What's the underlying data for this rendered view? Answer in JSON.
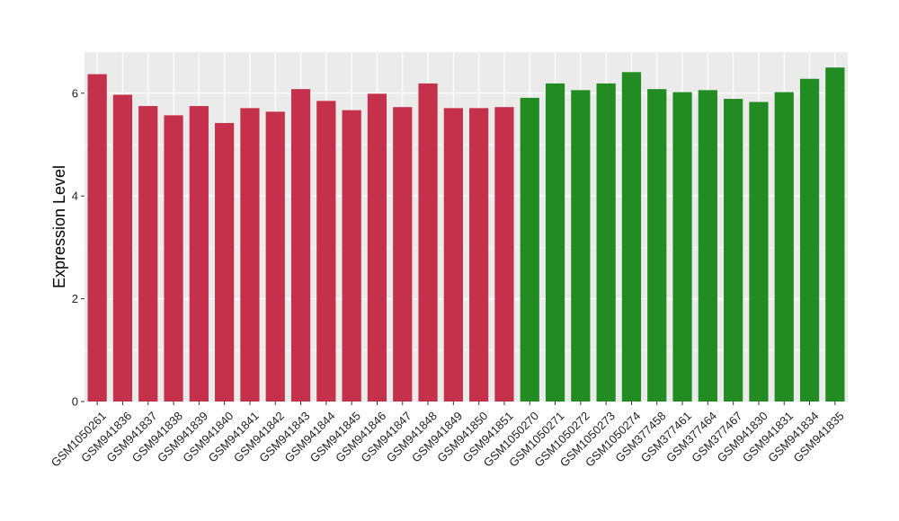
{
  "chart_data": {
    "type": "bar",
    "title": "",
    "xlabel": "",
    "ylabel": "Expression Level",
    "ylim": [
      0,
      6.8
    ],
    "yticks": [
      0,
      2,
      4,
      6
    ],
    "grid": true,
    "legend": "none",
    "categories": [
      "GSM1050261",
      "GSM941836",
      "GSM941837",
      "GSM941838",
      "GSM941839",
      "GSM941840",
      "GSM941841",
      "GSM941842",
      "GSM941843",
      "GSM941844",
      "GSM941845",
      "GSM941846",
      "GSM941847",
      "GSM941848",
      "GSM941849",
      "GSM941850",
      "GSM941851",
      "GSM1050270",
      "GSM1050271",
      "GSM1050272",
      "GSM1050273",
      "GSM1050274",
      "GSM377458",
      "GSM377461",
      "GSM377464",
      "GSM377467",
      "GSM941830",
      "GSM941831",
      "GSM941834",
      "GSM941835"
    ],
    "values": [
      6.37,
      5.97,
      5.75,
      5.57,
      5.75,
      5.42,
      5.71,
      5.64,
      6.08,
      5.85,
      5.67,
      5.99,
      5.73,
      6.19,
      5.71,
      5.71,
      5.73,
      5.91,
      6.19,
      6.06,
      6.19,
      6.41,
      6.08,
      6.02,
      6.06,
      5.89,
      5.83,
      6.02,
      6.28,
      6.5
    ],
    "group_of_bar": [
      0,
      0,
      0,
      0,
      0,
      0,
      0,
      0,
      0,
      0,
      0,
      0,
      0,
      0,
      0,
      0,
      0,
      1,
      1,
      1,
      1,
      1,
      1,
      1,
      1,
      1,
      1,
      1,
      1,
      1
    ],
    "colors": [
      "#c5304a",
      "#228b22"
    ],
    "panel_background": "#ebebeb",
    "grid_color": "#ffffff"
  }
}
